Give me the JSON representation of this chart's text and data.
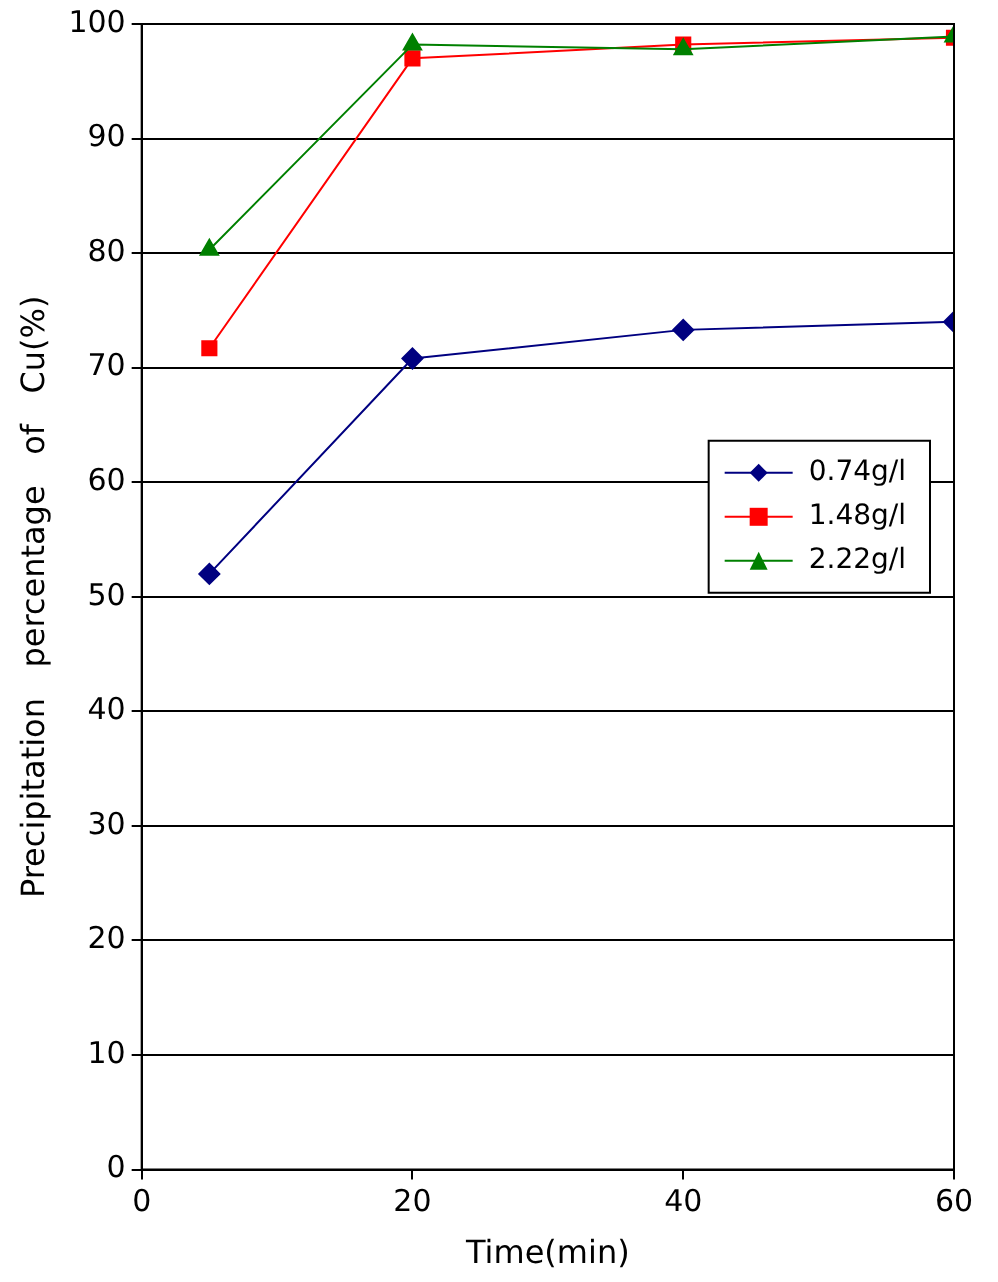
{
  "chart_data": {
    "type": "line",
    "xlabel": "Time(min)",
    "ylabel": "Precipitation   percentage   of   Cu(%)",
    "x": [
      5,
      20,
      40,
      60
    ],
    "xlim": [
      0,
      60
    ],
    "xticks": [
      0,
      20,
      40,
      60
    ],
    "ylim": [
      0,
      100
    ],
    "yticks": [
      0,
      10,
      20,
      30,
      40,
      50,
      60,
      70,
      80,
      90,
      100
    ],
    "grid": "y",
    "legend": "right",
    "series": [
      {
        "name": "0.74g/l",
        "color": "#000080",
        "marker": "diamond",
        "values": [
          52,
          70.8,
          73.3,
          74
        ]
      },
      {
        "name": "1.48g/l",
        "color": "#ff0000",
        "marker": "square",
        "values": [
          71.7,
          97,
          98.2,
          98.8
        ]
      },
      {
        "name": "2.22g/l",
        "color": "#008000",
        "marker": "triangle",
        "values": [
          80.3,
          98.2,
          97.8,
          98.9
        ]
      }
    ]
  }
}
